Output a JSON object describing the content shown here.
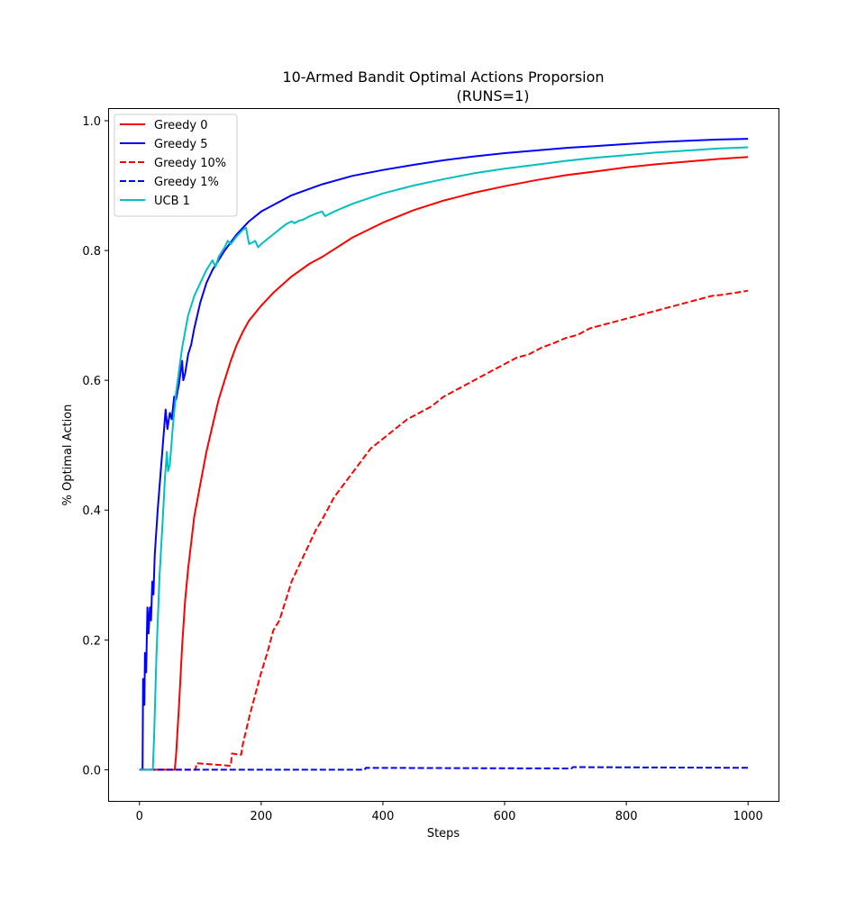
{
  "chart_data": {
    "type": "line",
    "title": "10-Armed Bandit Optimal Actions Proporsion",
    "subtitle": "(RUNS=1)",
    "xlabel": "Steps",
    "ylabel": "% Optimal Action",
    "xlim": [
      -50,
      1050
    ],
    "ylim": [
      -0.048,
      1.018
    ],
    "xticks": [
      0,
      200,
      400,
      600,
      800,
      1000
    ],
    "yticks": [
      0.0,
      0.2,
      0.4,
      0.6,
      0.8,
      1.0
    ],
    "grid": false,
    "legend_position": "top-left",
    "series": [
      {
        "name": "Greedy 0",
        "color": "#ff0000",
        "style": "solid",
        "points": [
          [
            0,
            0
          ],
          [
            58,
            0
          ],
          [
            60,
            0.02
          ],
          [
            65,
            0.1
          ],
          [
            70,
            0.19
          ],
          [
            75,
            0.26
          ],
          [
            80,
            0.31
          ],
          [
            90,
            0.39
          ],
          [
            100,
            0.44
          ],
          [
            110,
            0.49
          ],
          [
            120,
            0.53
          ],
          [
            130,
            0.57
          ],
          [
            140,
            0.6
          ],
          [
            150,
            0.63
          ],
          [
            160,
            0.655
          ],
          [
            170,
            0.675
          ],
          [
            180,
            0.692
          ],
          [
            200,
            0.715
          ],
          [
            220,
            0.735
          ],
          [
            250,
            0.76
          ],
          [
            280,
            0.78
          ],
          [
            300,
            0.79
          ],
          [
            350,
            0.82
          ],
          [
            400,
            0.843
          ],
          [
            450,
            0.862
          ],
          [
            500,
            0.877
          ],
          [
            550,
            0.889
          ],
          [
            600,
            0.899
          ],
          [
            650,
            0.908
          ],
          [
            700,
            0.916
          ],
          [
            750,
            0.922
          ],
          [
            800,
            0.928
          ],
          [
            850,
            0.933
          ],
          [
            900,
            0.937
          ],
          [
            950,
            0.941
          ],
          [
            1000,
            0.944
          ]
        ]
      },
      {
        "name": "Greedy 5",
        "color": "#0000ff",
        "style": "solid",
        "points": [
          [
            0,
            0
          ],
          [
            5,
            0
          ],
          [
            6,
            0.14
          ],
          [
            8,
            0.1
          ],
          [
            9,
            0.18
          ],
          [
            11,
            0.15
          ],
          [
            13,
            0.25
          ],
          [
            15,
            0.21
          ],
          [
            17,
            0.25
          ],
          [
            19,
            0.23
          ],
          [
            21,
            0.29
          ],
          [
            23,
            0.27
          ],
          [
            25,
            0.33
          ],
          [
            30,
            0.4
          ],
          [
            35,
            0.46
          ],
          [
            40,
            0.52
          ],
          [
            43,
            0.555
          ],
          [
            46,
            0.525
          ],
          [
            50,
            0.55
          ],
          [
            53,
            0.54
          ],
          [
            57,
            0.575
          ],
          [
            60,
            0.57
          ],
          [
            65,
            0.595
          ],
          [
            70,
            0.63
          ],
          [
            72,
            0.6
          ],
          [
            75,
            0.61
          ],
          [
            80,
            0.64
          ],
          [
            85,
            0.655
          ],
          [
            90,
            0.68
          ],
          [
            100,
            0.72
          ],
          [
            110,
            0.75
          ],
          [
            120,
            0.77
          ],
          [
            140,
            0.8
          ],
          [
            160,
            0.825
          ],
          [
            180,
            0.845
          ],
          [
            200,
            0.86
          ],
          [
            250,
            0.885
          ],
          [
            300,
            0.902
          ],
          [
            350,
            0.915
          ],
          [
            400,
            0.924
          ],
          [
            450,
            0.932
          ],
          [
            500,
            0.939
          ],
          [
            550,
            0.945
          ],
          [
            600,
            0.95
          ],
          [
            650,
            0.954
          ],
          [
            700,
            0.958
          ],
          [
            750,
            0.961
          ],
          [
            800,
            0.964
          ],
          [
            850,
            0.967
          ],
          [
            900,
            0.969
          ],
          [
            950,
            0.971
          ],
          [
            1000,
            0.972
          ]
        ]
      },
      {
        "name": "Greedy 10%",
        "color": "#ff0000",
        "style": "dashed",
        "points": [
          [
            0,
            0
          ],
          [
            92,
            0
          ],
          [
            94,
            0.01
          ],
          [
            150,
            0.006
          ],
          [
            152,
            0.025
          ],
          [
            167,
            0.023
          ],
          [
            170,
            0.04
          ],
          [
            180,
            0.08
          ],
          [
            190,
            0.115
          ],
          [
            200,
            0.15
          ],
          [
            210,
            0.18
          ],
          [
            220,
            0.215
          ],
          [
            230,
            0.23
          ],
          [
            240,
            0.26
          ],
          [
            250,
            0.29
          ],
          [
            260,
            0.31
          ],
          [
            270,
            0.33
          ],
          [
            280,
            0.35
          ],
          [
            290,
            0.37
          ],
          [
            300,
            0.385
          ],
          [
            320,
            0.42
          ],
          [
            340,
            0.445
          ],
          [
            360,
            0.47
          ],
          [
            380,
            0.495
          ],
          [
            400,
            0.51
          ],
          [
            420,
            0.525
          ],
          [
            440,
            0.54
          ],
          [
            460,
            0.55
          ],
          [
            480,
            0.56
          ],
          [
            500,
            0.575
          ],
          [
            520,
            0.585
          ],
          [
            540,
            0.595
          ],
          [
            560,
            0.605
          ],
          [
            580,
            0.615
          ],
          [
            600,
            0.625
          ],
          [
            620,
            0.635
          ],
          [
            640,
            0.64
          ],
          [
            660,
            0.65
          ],
          [
            680,
            0.657
          ],
          [
            700,
            0.665
          ],
          [
            720,
            0.67
          ],
          [
            740,
            0.68
          ],
          [
            760,
            0.685
          ],
          [
            780,
            0.69
          ],
          [
            800,
            0.695
          ],
          [
            820,
            0.7
          ],
          [
            840,
            0.705
          ],
          [
            860,
            0.71
          ],
          [
            880,
            0.715
          ],
          [
            900,
            0.72
          ],
          [
            920,
            0.725
          ],
          [
            940,
            0.73
          ],
          [
            960,
            0.732
          ],
          [
            980,
            0.735
          ],
          [
            1000,
            0.738
          ]
        ]
      },
      {
        "name": "Greedy 1%",
        "color": "#0000ff",
        "style": "dashed",
        "points": [
          [
            0,
            0
          ],
          [
            370,
            0
          ],
          [
            372,
            0.003
          ],
          [
            710,
            0.002
          ],
          [
            712,
            0.004
          ],
          [
            1000,
            0.003
          ]
        ]
      },
      {
        "name": "UCB 1",
        "color": "#00bfbf",
        "style": "solid",
        "points": [
          [
            0,
            0
          ],
          [
            22,
            0
          ],
          [
            24,
            0.05
          ],
          [
            28,
            0.18
          ],
          [
            33,
            0.3
          ],
          [
            38,
            0.38
          ],
          [
            42,
            0.45
          ],
          [
            45,
            0.49
          ],
          [
            47,
            0.46
          ],
          [
            50,
            0.47
          ],
          [
            55,
            0.53
          ],
          [
            60,
            0.58
          ],
          [
            70,
            0.65
          ],
          [
            80,
            0.7
          ],
          [
            90,
            0.73
          ],
          [
            100,
            0.75
          ],
          [
            110,
            0.77
          ],
          [
            120,
            0.785
          ],
          [
            125,
            0.775
          ],
          [
            130,
            0.79
          ],
          [
            140,
            0.805
          ],
          [
            145,
            0.815
          ],
          [
            150,
            0.81
          ],
          [
            160,
            0.822
          ],
          [
            170,
            0.832
          ],
          [
            175,
            0.835
          ],
          [
            180,
            0.81
          ],
          [
            185,
            0.812
          ],
          [
            190,
            0.815
          ],
          [
            195,
            0.805
          ],
          [
            200,
            0.81
          ],
          [
            220,
            0.825
          ],
          [
            240,
            0.84
          ],
          [
            250,
            0.845
          ],
          [
            255,
            0.842
          ],
          [
            260,
            0.845
          ],
          [
            270,
            0.848
          ],
          [
            280,
            0.853
          ],
          [
            290,
            0.857
          ],
          [
            300,
            0.86
          ],
          [
            305,
            0.853
          ],
          [
            320,
            0.86
          ],
          [
            350,
            0.872
          ],
          [
            400,
            0.888
          ],
          [
            450,
            0.9
          ],
          [
            500,
            0.91
          ],
          [
            550,
            0.919
          ],
          [
            600,
            0.926
          ],
          [
            650,
            0.932
          ],
          [
            700,
            0.938
          ],
          [
            750,
            0.943
          ],
          [
            800,
            0.947
          ],
          [
            850,
            0.951
          ],
          [
            900,
            0.954
          ],
          [
            950,
            0.957
          ],
          [
            1000,
            0.959
          ]
        ]
      }
    ]
  }
}
